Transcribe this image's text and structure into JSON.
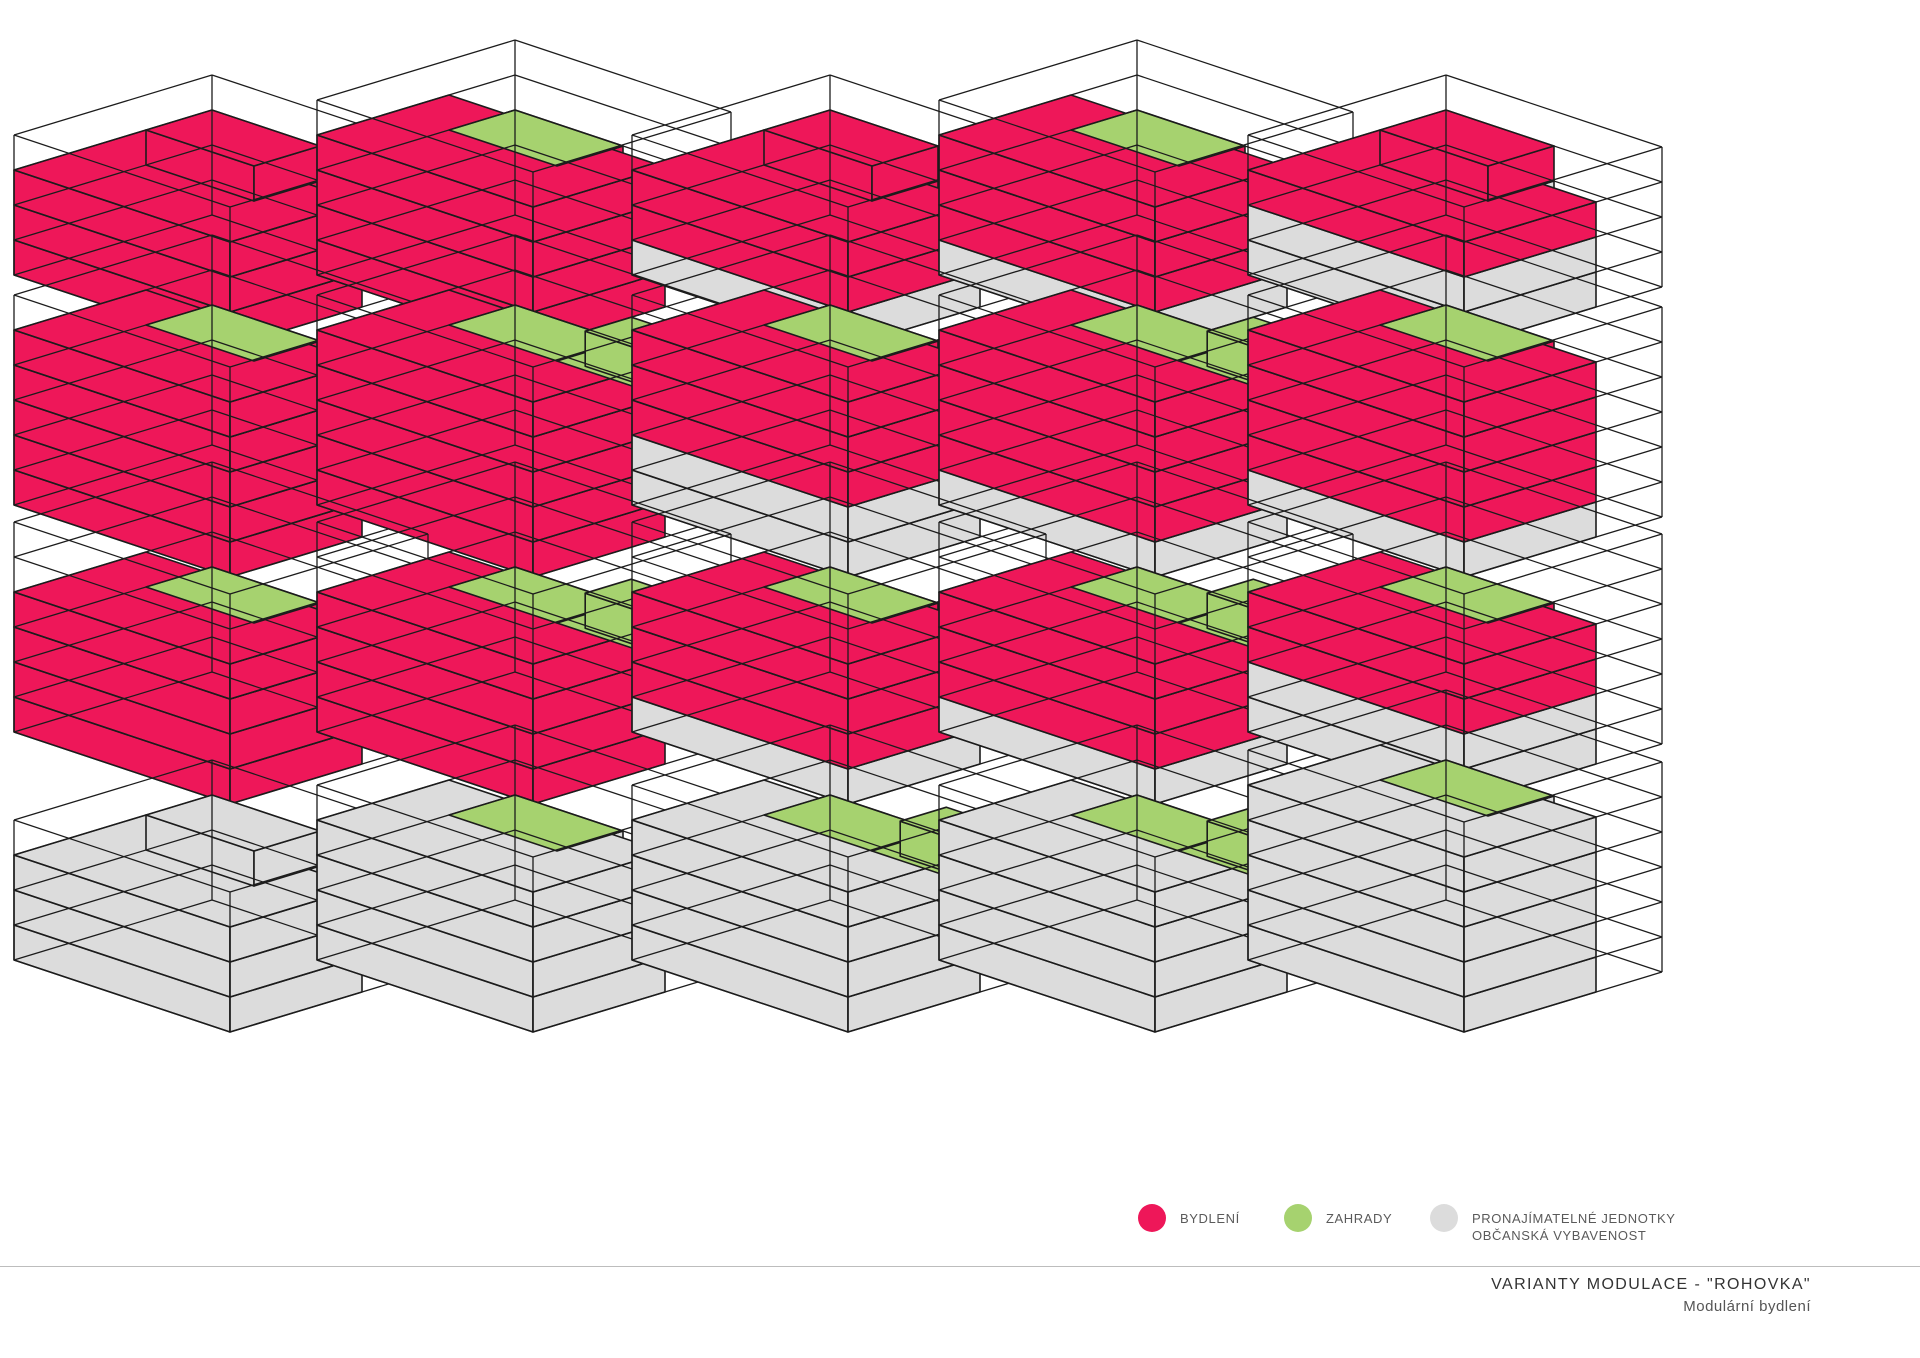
{
  "colors": {
    "bydleni": "#ee1759",
    "zahrady": "#a6d26f",
    "pronajimatelne": "#dcdcdc",
    "outline": "#1c1c1c"
  },
  "legend": [
    {
      "key": "bydleni",
      "color": "#ee1759",
      "label": "BYDLENÍ"
    },
    {
      "key": "zahrady",
      "color": "#a6d26f",
      "label": "ZAHRADY"
    },
    {
      "key": "pronajimatelne",
      "color": "#dcdcdc",
      "label": "PRONAJÍMATELNÉ JEDNOTKY",
      "label2": "OBČANSKÁ VYBAVENOST"
    }
  ],
  "footer": {
    "title": "VARIANTY  MODULACE - \"ROHOVKA\"",
    "subtitle": "Modulární bydlení"
  },
  "variants": [
    [
      [
        "B",
        "B",
        "B"
      ],
      [
        "B",
        "B",
        "B",
        "G"
      ],
      [
        "P",
        "B",
        "B"
      ],
      [
        "P",
        "B",
        "B",
        "G"
      ],
      [
        "P",
        "P",
        "B"
      ]
    ],
    [
      [
        "B",
        "B",
        "B",
        "B",
        "G"
      ],
      [
        "B",
        "B",
        "B",
        "B",
        "GT"
      ],
      [
        "P",
        "P",
        "B",
        "B",
        "G"
      ],
      [
        "P",
        "B",
        "B",
        "B",
        "GT"
      ],
      [
        "P",
        "B",
        "B",
        "B",
        "G"
      ]
    ],
    [
      [
        "B",
        "B",
        "B",
        "G",
        "E"
      ],
      [
        "B",
        "B",
        "B",
        "GT",
        "E"
      ],
      [
        "P",
        "B",
        "B",
        "G",
        "E"
      ],
      [
        "P",
        "B",
        "B",
        "GT",
        "E"
      ],
      [
        "P",
        "P",
        "B",
        "G",
        "E"
      ]
    ],
    [
      [
        "P",
        "P",
        "P"
      ],
      [
        "P",
        "P",
        "P",
        "G"
      ],
      [
        "P",
        "P",
        "P",
        "GT"
      ],
      [
        "P",
        "P",
        "P",
        "GT"
      ],
      [
        "P",
        "P",
        "P",
        "P",
        "G"
      ]
    ]
  ]
}
